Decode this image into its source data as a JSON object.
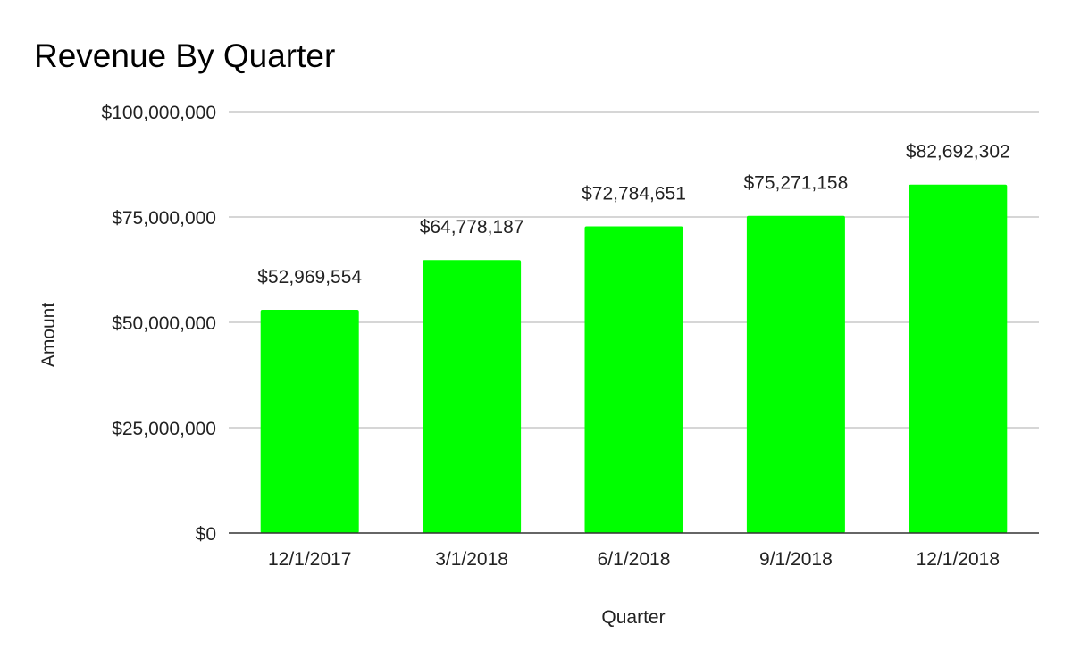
{
  "chart_data": {
    "type": "bar",
    "title": "Revenue By Quarter",
    "xlabel": "Quarter",
    "ylabel": "Amount",
    "categories": [
      "12/1/2017",
      "3/1/2018",
      "6/1/2018",
      "9/1/2018",
      "12/1/2018"
    ],
    "values": [
      52969554,
      64778187,
      72784651,
      75271158,
      82692302
    ],
    "data_labels": [
      "$52,969,554",
      "$64,778,187",
      "$72,784,651",
      "$75,271,158",
      "$82,692,302"
    ],
    "ylim": [
      0,
      100000000
    ],
    "yticks": [
      0,
      25000000,
      50000000,
      75000000,
      100000000
    ],
    "ytick_labels": [
      "$0",
      "$25,000,000",
      "$50,000,000",
      "$75,000,000",
      "$100,000,000"
    ],
    "grid": true,
    "legend": "none",
    "bar_color": "#00ff00"
  }
}
